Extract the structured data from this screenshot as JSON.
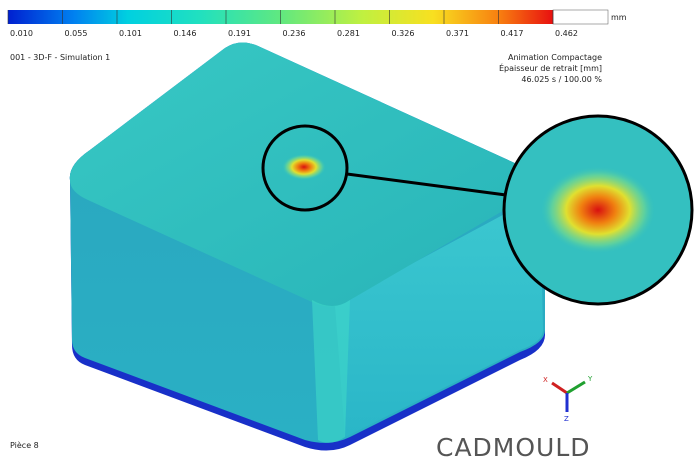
{
  "legend": {
    "unit": "mm",
    "labels": [
      "0.010",
      "0.055",
      "0.101",
      "0.146",
      "0.191",
      "0.236",
      "0.281",
      "0.326",
      "0.371",
      "0.417",
      "0.462"
    ]
  },
  "header": {
    "simulation": "001 - 3D-F - Simulation 1",
    "animation": "Animation Compactage",
    "result": "Épaisseur de retrait [mm]",
    "time": "46.025 s  /  100.00 %"
  },
  "axes": {
    "x": "X",
    "y": "Y",
    "z": "Z"
  },
  "footer": {
    "part": "Pièce 8",
    "brand": "CADMOULD"
  }
}
